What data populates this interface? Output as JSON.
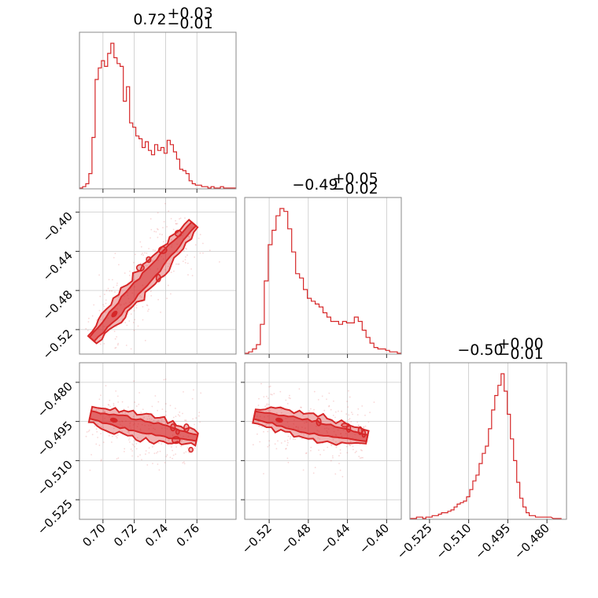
{
  "chart_data": {
    "type": "corner",
    "color": "#d62728",
    "parameters": [
      {
        "median_label": "0.72",
        "upper_err": "+0.03",
        "lower_err": "−0.01",
        "range": [
          0.685,
          0.785
        ],
        "ticks": [
          0.7,
          0.72,
          0.74,
          0.76
        ],
        "tick_labels": [
          "0.70",
          "0.72",
          "0.74",
          "0.76"
        ]
      },
      {
        "median_label": "−0.49",
        "upper_err": "+0.05",
        "lower_err": "−0.02",
        "range": [
          -0.545,
          -0.385
        ],
        "ticks": [
          -0.52,
          -0.48,
          -0.44,
          -0.4
        ],
        "tick_labels": [
          "−0.52",
          "−0.48",
          "−0.44",
          "−0.40"
        ]
      },
      {
        "median_label": "−0.50",
        "upper_err": "+0.00",
        "lower_err": "−0.01",
        "range": [
          -0.5325,
          -0.4725
        ],
        "ticks": [
          -0.525,
          -0.51,
          -0.495,
          -0.48
        ],
        "tick_labels": [
          "−0.525",
          "−0.510",
          "−0.495",
          "−0.480"
        ]
      }
    ],
    "histograms": [
      {
        "x": [
          0.686,
          0.688,
          0.69,
          0.692,
          0.694,
          0.696,
          0.698,
          0.7,
          0.702,
          0.704,
          0.706,
          0.708,
          0.71,
          0.712,
          0.714,
          0.716,
          0.718,
          0.72,
          0.722,
          0.724,
          0.726,
          0.728,
          0.73,
          0.732,
          0.734,
          0.736,
          0.738,
          0.74,
          0.742,
          0.744,
          0.746,
          0.748,
          0.75,
          0.752,
          0.754,
          0.756,
          0.758,
          0.76,
          0.762,
          0.764,
          0.766,
          0.768,
          0.77,
          0.772,
          0.774,
          0.776,
          0.778,
          0.78,
          0.782,
          0.784
        ],
        "counts": [
          0,
          1,
          3,
          10,
          35,
          75,
          83,
          88,
          84,
          93,
          100,
          90,
          86,
          84,
          60,
          70,
          45,
          42,
          36,
          34,
          28,
          32,
          26,
          23,
          30,
          26,
          28,
          24,
          33,
          30,
          25,
          20,
          13,
          12,
          10,
          5,
          3,
          2,
          2,
          1,
          1,
          0,
          1,
          0,
          0,
          1,
          0,
          0,
          0,
          0
        ]
      },
      {
        "x": [
          -0.543,
          -0.539,
          -0.535,
          -0.531,
          -0.527,
          -0.523,
          -0.519,
          -0.515,
          -0.511,
          -0.507,
          -0.503,
          -0.499,
          -0.495,
          -0.491,
          -0.487,
          -0.483,
          -0.479,
          -0.475,
          -0.471,
          -0.467,
          -0.463,
          -0.459,
          -0.455,
          -0.451,
          -0.447,
          -0.443,
          -0.439,
          -0.435,
          -0.431,
          -0.427,
          -0.423,
          -0.419,
          -0.415,
          -0.411,
          -0.407,
          -0.403,
          -0.399,
          -0.395,
          -0.391,
          -0.387
        ],
        "counts": [
          0,
          1,
          3,
          6,
          20,
          50,
          75,
          85,
          95,
          100,
          98,
          86,
          70,
          55,
          52,
          44,
          38,
          36,
          34,
          32,
          28,
          25,
          22,
          22,
          20,
          22,
          21,
          21,
          25,
          22,
          16,
          11,
          7,
          4,
          3,
          3,
          2,
          1,
          1,
          0
        ]
      },
      {
        "x": [
          -0.5318,
          -0.5306,
          -0.5294,
          -0.5282,
          -0.527,
          -0.5258,
          -0.5246,
          -0.5234,
          -0.5222,
          -0.521,
          -0.5198,
          -0.5186,
          -0.5174,
          -0.5162,
          -0.515,
          -0.5138,
          -0.5126,
          -0.5114,
          -0.5102,
          -0.509,
          -0.5078,
          -0.5066,
          -0.5054,
          -0.5042,
          -0.503,
          -0.5018,
          -0.5006,
          -0.4994,
          -0.4982,
          -0.497,
          -0.4958,
          -0.4946,
          -0.4934,
          -0.4922,
          -0.491,
          -0.4898,
          -0.4886,
          -0.4874,
          -0.4862,
          -0.485,
          -0.4838,
          -0.4826,
          -0.481,
          -0.479,
          -0.477,
          -0.475
        ],
        "counts": [
          0,
          0,
          1,
          1,
          0,
          1,
          1,
          2,
          2,
          3,
          4,
          4,
          5,
          6,
          8,
          10,
          11,
          12,
          15,
          20,
          26,
          30,
          38,
          45,
          50,
          62,
          75,
          85,
          92,
          100,
          88,
          72,
          55,
          40,
          25,
          14,
          8,
          4,
          2,
          2,
          1,
          1,
          1,
          1,
          0,
          0
        ]
      }
    ],
    "correlation": {
      "p0_p1": "positive",
      "p0_p2": "negative",
      "p1_p2": "negative"
    }
  }
}
